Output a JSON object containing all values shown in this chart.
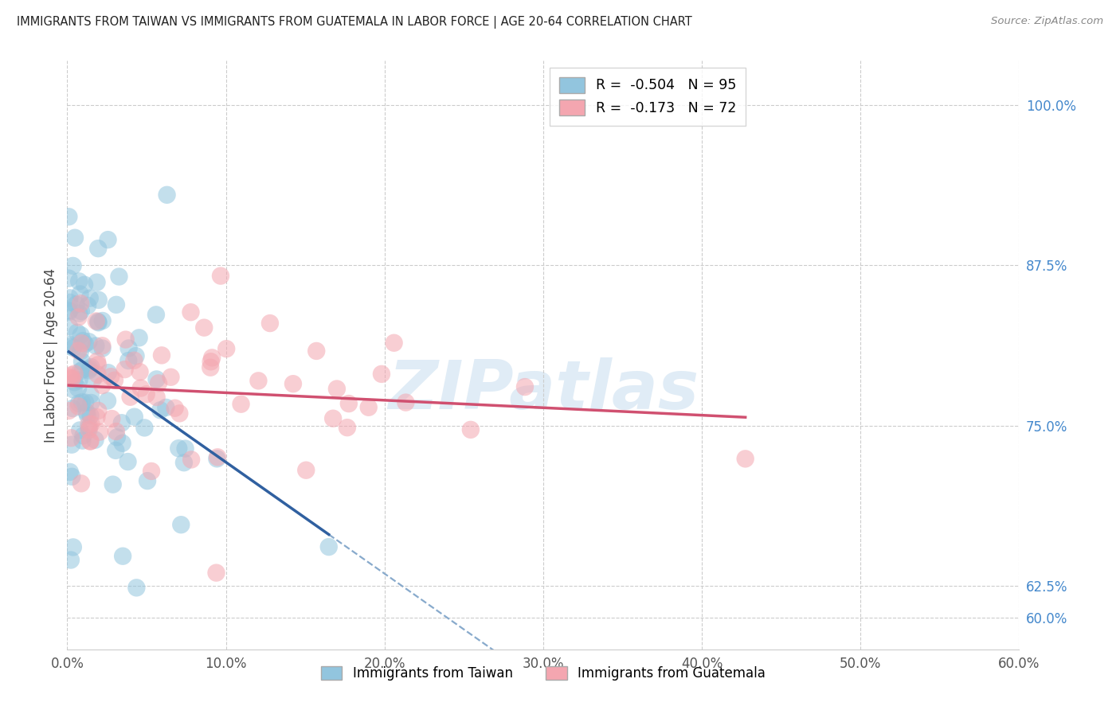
{
  "title": "IMMIGRANTS FROM TAIWAN VS IMMIGRANTS FROM GUATEMALA IN LABOR FORCE | AGE 20-64 CORRELATION CHART",
  "source": "Source: ZipAtlas.com",
  "ylabel": "In Labor Force | Age 20-64",
  "taiwan_R": -0.504,
  "taiwan_N": 95,
  "guatemala_R": -0.173,
  "guatemala_N": 72,
  "taiwan_color": "#92c5de",
  "taiwan_line_color": "#3060a0",
  "guatemala_color": "#f4a6b0",
  "guatemala_line_color": "#d05070",
  "dashed_line_color": "#88aacc",
  "ytick_color": "#4488cc",
  "watermark_color": "#cce0f0",
  "watermark_text": "ZIPatlas",
  "xlim": [
    0.0,
    0.6
  ],
  "ylim": [
    0.575,
    1.035
  ],
  "yticks": [
    0.6,
    0.625,
    0.75,
    0.875,
    1.0
  ],
  "ytick_labels": [
    "60.0%",
    "62.5%",
    "75.0%",
    "87.5%",
    "100.0%"
  ],
  "xtick_vals": [
    0.0,
    0.1,
    0.2,
    0.3,
    0.4,
    0.5,
    0.6
  ],
  "xtick_labels": [
    "0.0%",
    "10.0%",
    "20.0%",
    "30.0%",
    "40.0%",
    "50.0%",
    "60.0%"
  ],
  "bg_color": "#ffffff",
  "grid_color": "#cccccc",
  "legend_label_taiwan": "R =  -0.504   N = 95",
  "legend_label_guatemala": "R =  -0.173   N = 72",
  "bottom_legend_taiwan": "Immigrants from Taiwan",
  "bottom_legend_guatemala": "Immigrants from Guatemala",
  "taiwan_seed": 77,
  "guatemala_seed": 88
}
